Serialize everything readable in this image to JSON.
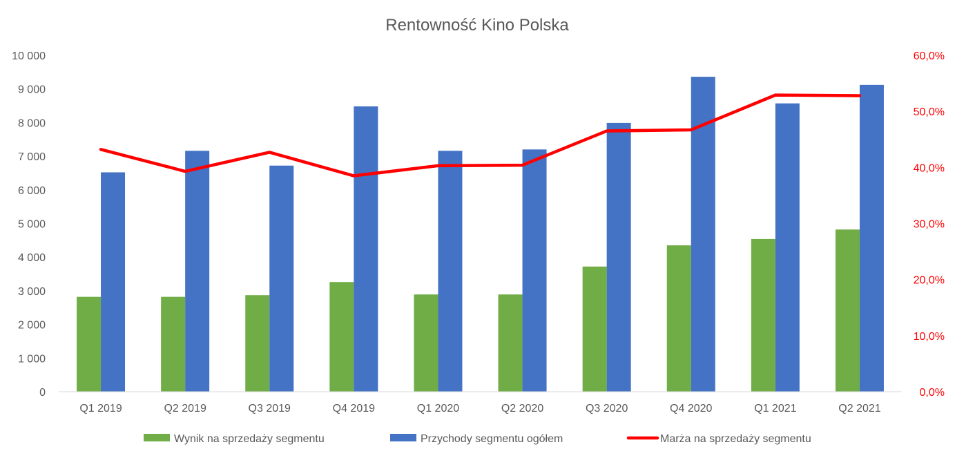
{
  "chart_data": {
    "type": "bar",
    "title": "Rentowność Kino Polska",
    "categories": [
      "Q1 2019",
      "Q2 2019",
      "Q3 2019",
      "Q4 2019",
      "Q1 2020",
      "Q2 2020",
      "Q3 2020",
      "Q4 2020",
      "Q1 2021",
      "Q2 2021"
    ],
    "series": [
      {
        "name": "Wynik na sprzedaży segmentu",
        "type": "bar",
        "axis": "left",
        "color": "#70AD47",
        "values": [
          2820,
          2820,
          2870,
          3260,
          2890,
          2890,
          3720,
          4350,
          4540,
          4820
        ]
      },
      {
        "name": "Przychody segmentu ogółem",
        "type": "bar",
        "axis": "left",
        "color": "#4472C4",
        "values": [
          6520,
          7160,
          6720,
          8480,
          7160,
          7200,
          7990,
          9360,
          8570,
          9120
        ]
      },
      {
        "name": "Marża na sprzedaży segmentu",
        "type": "line",
        "axis": "right",
        "color": "#FF0000",
        "values": [
          43.2,
          39.3,
          42.7,
          38.5,
          40.3,
          40.4,
          46.5,
          46.7,
          52.9,
          52.8
        ]
      }
    ],
    "y_left": {
      "lim": [
        0,
        10000
      ],
      "ticks": [
        0,
        1000,
        2000,
        3000,
        4000,
        5000,
        6000,
        7000,
        8000,
        9000,
        10000
      ],
      "tick_labels": [
        "0",
        "1 000",
        "2 000",
        "3 000",
        "4 000",
        "5 000",
        "6 000",
        "7 000",
        "8 000",
        "9 000",
        "10 000"
      ]
    },
    "y_right": {
      "lim": [
        0,
        60
      ],
      "ticks": [
        0,
        10,
        20,
        30,
        40,
        50,
        60
      ],
      "tick_labels": [
        "0,0%",
        "10,0%",
        "20,0%",
        "30,0%",
        "40,0%",
        "50,0%",
        "60,0%"
      ],
      "color": "#FF0000"
    },
    "xlabel": "",
    "ylabel": "",
    "grid": false,
    "legend_position": "bottom",
    "text_color": "#595959",
    "axis_line_color": "#D9D9D9"
  }
}
